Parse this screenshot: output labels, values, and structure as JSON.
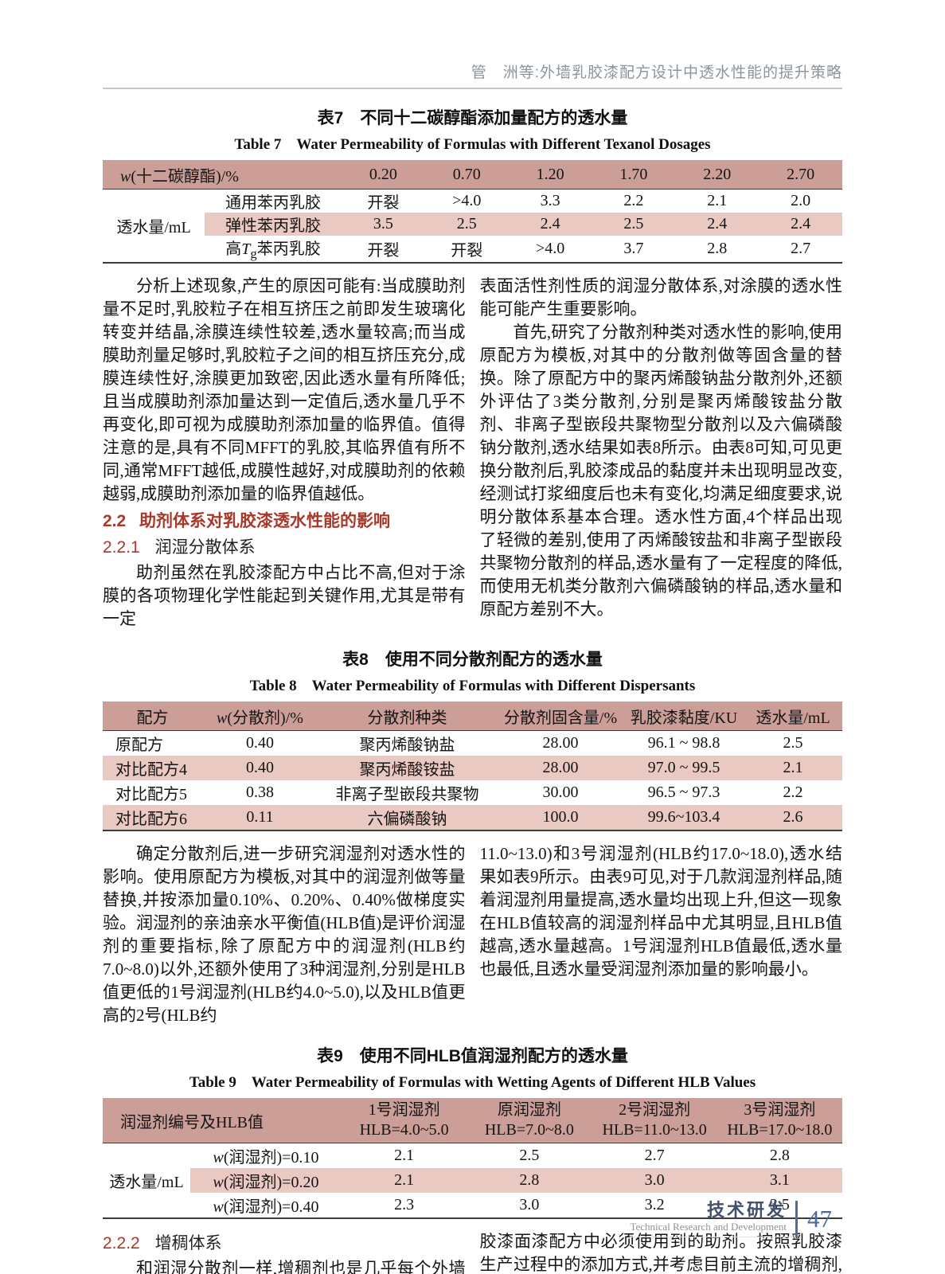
{
  "running_head": "管　洲等:外墙乳胶漆配方设计中透水性能的提升策略",
  "t7": {
    "title_zh": "表7　不同十二碳醇酯添加量配方的透水量",
    "title_en": "Table 7　Water Permeability of Formulas with Different Texanol Dosages",
    "header_label_html": "<i>w</i>(十二碳醇酯)/%",
    "dosages": [
      "0.20",
      "0.70",
      "1.20",
      "1.70",
      "2.20",
      "2.70"
    ],
    "row_group": "透水量/mL",
    "rows": [
      {
        "label_html": "通用苯丙乳胶",
        "values": [
          "开裂",
          ">4.0",
          "3.3",
          "2.2",
          "2.1",
          "2.0"
        ]
      },
      {
        "label_html": "弹性苯丙乳胶",
        "values": [
          "3.5",
          "2.5",
          "2.4",
          "2.5",
          "2.4",
          "2.4"
        ]
      },
      {
        "label_html": "高<i>T</i><sub>g</sub>苯丙乳胶",
        "values": [
          "开裂",
          "开裂",
          ">4.0",
          "3.7",
          "2.8",
          "2.7"
        ]
      }
    ]
  },
  "sec1": {
    "left_p1": "分析上述现象,产生的原因可能有:当成膜助剂量不足时,乳胶粒子在相互挤压之前即发生玻璃化转变并结晶,涂膜连续性较差,透水量较高;而当成膜助剂量足够时,乳胶粒子之间的相互挤压充分,成膜连续性好,涂膜更加致密,因此透水量有所降低;且当成膜助剂添加量达到一定值后,透水量几乎不再变化,即可视为成膜助剂添加量的临界值。值得注意的是,具有不同MFFT的乳胶,其临界值有所不同,通常MFFT越低,成膜性越好,对成膜助剂的依赖越弱,成膜助剂添加量的临界值越低。",
    "h22": {
      "num": "2.2",
      "title": "助剂体系对乳胶漆透水性能的影响"
    },
    "h221": {
      "num": "2.2.1",
      "title": "润湿分散体系"
    },
    "left_p2": "助剂虽然在乳胶漆配方中占比不高,但对于涂膜的各项物理化学性能起到关键作用,尤其是带有一定",
    "right_p1": "表面活性剂性质的润湿分散体系,对涂膜的透水性能可能产生重要影响。",
    "right_p2": "首先,研究了分散剂种类对透水性的影响,使用原配方为模板,对其中的分散剂做等固含量的替换。除了原配方中的聚丙烯酸钠盐分散剂外,还额外评估了3类分散剂,分别是聚丙烯酸铵盐分散剂、非离子型嵌段共聚物型分散剂以及六偏磷酸钠分散剂,透水结果如表8所示。由表8可知,可见更换分散剂后,乳胶漆成品的黏度并未出现明显改变,经测试打浆细度后也未有变化,均满足细度要求,说明分散体系基本合理。透水性方面,4个样品出现了轻微的差别,使用了丙烯酸铵盐和非离子型嵌段共聚物分散剂的样品,透水量有了一定程度的降低,而使用无机类分散剂六偏磷酸钠的样品,透水量和原配方差别不大。"
  },
  "t8": {
    "title_zh": "表8　使用不同分散剂配方的透水量",
    "title_en": "Table 8　Water Permeability of Formulas with Different Dispersants",
    "headers_html": [
      "配方",
      "<i>w</i>(分散剂)/%",
      "分散剂种类",
      "分散剂固含量/%",
      "乳胶漆黏度/KU",
      "透水量/mL"
    ],
    "rows": [
      {
        "cells": [
          "原配方",
          "0.40",
          "聚丙烯酸钠盐",
          "28.00",
          "96.1 ~ 98.8",
          "2.5"
        ]
      },
      {
        "cells": [
          "对比配方4",
          "0.40",
          "聚丙烯酸铵盐",
          "28.00",
          "97.0 ~ 99.5",
          "2.1"
        ]
      },
      {
        "cells": [
          "对比配方5",
          "0.38",
          "非离子型嵌段共聚物",
          "30.00",
          "96.5 ~ 97.3",
          "2.2"
        ]
      },
      {
        "cells": [
          "对比配方6",
          "0.11",
          "六偏磷酸钠",
          "100.0",
          "99.6~103.4",
          "2.6"
        ]
      }
    ]
  },
  "sec2": {
    "left_p1": "确定分散剂后,进一步研究润湿剂对透水性的影响。使用原配方为模板,对其中的润湿剂做等量替换,并按添加量0.10%、0.20%、0.40%做梯度实验。润湿剂的亲油亲水平衡值(HLB值)是评价润湿剂的重要指标,除了原配方中的润湿剂(HLB约7.0~8.0)以外,还额外使用了3种润湿剂,分别是HLB值更低的1号润湿剂(HLB约4.0~5.0),以及HLB值更高的2号(HLB约",
    "right_p1": "11.0~13.0)和3号润湿剂(HLB约17.0~18.0),透水结果如表9所示。由表9可见,对于几款润湿剂样品,随着润湿剂用量提高,透水量均出现上升,但这一现象在HLB值较高的润湿剂样品中尤其明显,且HLB值越高,透水量越高。1号润湿剂HLB值最低,透水量也最低,且透水量受润湿剂添加量的影响最小。"
  },
  "t9": {
    "title_zh": "表9　使用不同HLB值润湿剂配方的透水量",
    "title_en": "Table 9　Water Permeability of Formulas with Wetting Agents of Different HLB Values",
    "header_label": "润湿剂编号及HLB值",
    "agents": [
      {
        "name": "1号润湿剂",
        "hlb": "HLB=4.0~5.0"
      },
      {
        "name": "原润湿剂",
        "hlb": "HLB=7.0~8.0"
      },
      {
        "name": "2号润湿剂",
        "hlb": "HLB=11.0~13.0"
      },
      {
        "name": "3号润湿剂",
        "hlb": "HLB=17.0~18.0"
      }
    ],
    "row_group": "透水量/mL",
    "rows": [
      {
        "label_html": "<i>w</i>(润湿剂)=0.10",
        "values": [
          "2.1",
          "2.5",
          "2.7",
          "2.8"
        ]
      },
      {
        "label_html": "<i>w</i>(润湿剂)=0.20",
        "values": [
          "2.1",
          "2.8",
          "3.0",
          "3.1"
        ]
      },
      {
        "label_html": "<i>w</i>(润湿剂)=0.40",
        "values": [
          "2.3",
          "3.0",
          "3.2",
          "3.5"
        ]
      }
    ]
  },
  "sec3": {
    "h222": {
      "num": "2.2.2",
      "title": "增稠体系"
    },
    "left_p1": "和润湿分散剂一样,增稠剂也是几乎每个外墙乳",
    "right_p1": "胶漆面漆配方中必须使用到的助剂。按照乳胶漆生产过程中的添加方式,并考虑目前主流的增稠剂,本文"
  },
  "footer": {
    "zh": "技术研发",
    "en": "Technical Research and Development",
    "page": "47"
  },
  "colors": {
    "table_header": "#cb9e97",
    "table_stripe": "#eac9c3",
    "heading_red": "#a9382b",
    "footer_blue": "#4a6d9c"
  }
}
